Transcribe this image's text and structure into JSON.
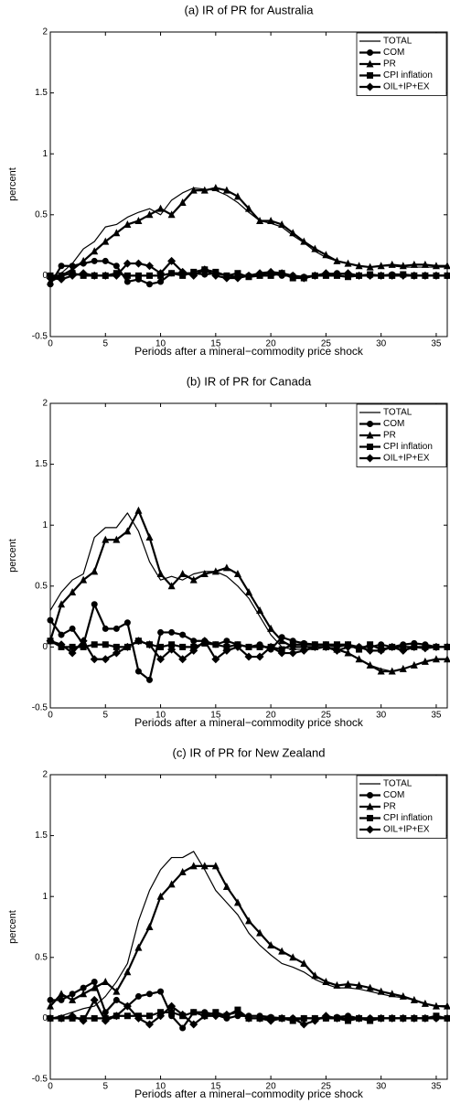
{
  "chart_data": [
    {
      "type": "line",
      "title": "(a) IR of PR for Australia",
      "x_label": "Periods after a mineral−commodity price shock",
      "y_label": "percent",
      "x": [
        0,
        1,
        2,
        3,
        4,
        5,
        6,
        7,
        8,
        9,
        10,
        11,
        12,
        13,
        14,
        15,
        16,
        17,
        18,
        19,
        20,
        21,
        22,
        23,
        24,
        25,
        26,
        27,
        28,
        29,
        30,
        31,
        32,
        33,
        34,
        35,
        36
      ],
      "xlim": [
        0,
        36
      ],
      "xticks": [
        0,
        5,
        10,
        15,
        20,
        25,
        30,
        35
      ],
      "ylim": [
        -0.5,
        2
      ],
      "yticks": [
        -0.5,
        0,
        0.5,
        1,
        1.5,
        2
      ],
      "legend": "upper right",
      "series": [
        {
          "name": "TOTAL",
          "color": "#000000",
          "marker": "none",
          "values": [
            -0.05,
            0.02,
            0.1,
            0.22,
            0.28,
            0.4,
            0.42,
            0.48,
            0.52,
            0.55,
            0.5,
            0.62,
            0.68,
            0.72,
            0.71,
            0.7,
            0.66,
            0.6,
            0.52,
            0.45,
            0.43,
            0.4,
            0.33,
            0.27,
            0.2,
            0.15,
            0.12,
            0.1,
            0.08,
            0.07,
            0.08,
            0.08,
            0.07,
            0.07,
            0.07,
            0.07,
            0.07
          ]
        },
        {
          "name": "COM",
          "color": "#000000",
          "marker": "circle",
          "values": [
            -0.07,
            0.08,
            0.08,
            0.1,
            0.12,
            0.12,
            0.08,
            -0.05,
            -0.03,
            -0.07,
            -0.05,
            0.02,
            0.02,
            0.02,
            0.01,
            0.02,
            0,
            -0.01,
            0,
            0.01,
            0.02,
            0,
            0,
            -0.01,
            0,
            0.01,
            0.02,
            0.01,
            0,
            0,
            0,
            0.01,
            0.01,
            0,
            0,
            0,
            0
          ]
        },
        {
          "name": "PR",
          "color": "#000000",
          "marker": "triangle",
          "values": [
            -0.05,
            0,
            0.05,
            0.12,
            0.2,
            0.28,
            0.35,
            0.42,
            0.45,
            0.5,
            0.55,
            0.5,
            0.6,
            0.7,
            0.7,
            0.72,
            0.7,
            0.65,
            0.55,
            0.45,
            0.45,
            0.42,
            0.35,
            0.28,
            0.22,
            0.17,
            0.12,
            0.1,
            0.08,
            0.07,
            0.08,
            0.09,
            0.08,
            0.09,
            0.09,
            0.08,
            0.08
          ]
        },
        {
          "name": "CPI inflation",
          "color": "#000000",
          "marker": "square",
          "values": [
            0,
            0,
            0.02,
            0,
            0,
            0,
            0.02,
            0,
            0,
            0,
            0,
            0.02,
            0,
            0.03,
            0.05,
            0.03,
            0,
            0.02,
            -0.01,
            0,
            0,
            0.02,
            -0.02,
            -0.02,
            0,
            0,
            0,
            -0.01,
            0,
            0.01,
            0,
            0,
            0.01,
            0,
            0,
            0,
            0
          ]
        },
        {
          "name": "OIL+IP+EX",
          "color": "#000000",
          "marker": "diamond",
          "values": [
            -0.02,
            -0.03,
            0,
            0.02,
            0,
            0,
            0,
            0.1,
            0.1,
            0.08,
            0.02,
            0.12,
            0.03,
            0,
            0.05,
            0,
            -0.02,
            -0.02,
            0,
            0.02,
            0.03,
            0.02,
            0,
            -0.02,
            0,
            0.02,
            0.01,
            0.02,
            0,
            0,
            0,
            0,
            0,
            0,
            0,
            0,
            0
          ]
        }
      ]
    },
    {
      "type": "line",
      "title": "(b) IR of PR for Canada",
      "x_label": "Periods after a mineral−commodity price shock",
      "y_label": "percent",
      "x": [
        0,
        1,
        2,
        3,
        4,
        5,
        6,
        7,
        8,
        9,
        10,
        11,
        12,
        13,
        14,
        15,
        16,
        17,
        18,
        19,
        20,
        21,
        22,
        23,
        24,
        25,
        26,
        27,
        28,
        29,
        30,
        31,
        32,
        33,
        34,
        35,
        36
      ],
      "xlim": [
        0,
        36
      ],
      "xticks": [
        0,
        5,
        10,
        15,
        20,
        25,
        30,
        35
      ],
      "ylim": [
        -0.5,
        2
      ],
      "yticks": [
        -0.5,
        0,
        0.5,
        1,
        1.5,
        2
      ],
      "legend": "upper right",
      "series": [
        {
          "name": "TOTAL",
          "color": "#000000",
          "marker": "none",
          "values": [
            0.3,
            0.45,
            0.55,
            0.6,
            0.9,
            0.98,
            0.98,
            1.1,
            0.95,
            0.7,
            0.55,
            0.58,
            0.55,
            0.6,
            0.62,
            0.62,
            0.58,
            0.5,
            0.4,
            0.25,
            0.1,
            0,
            -0.02,
            -0.02,
            -0.02,
            0,
            -0.02,
            -0.05,
            -0.1,
            -0.15,
            -0.18,
            -0.2,
            -0.18,
            -0.15,
            -0.12,
            -0.1,
            -0.1
          ]
        },
        {
          "name": "COM",
          "color": "#000000",
          "marker": "circle",
          "values": [
            0.22,
            0.1,
            0.15,
            0.02,
            0.35,
            0.15,
            0.15,
            0.2,
            -0.2,
            -0.27,
            0.12,
            0.12,
            0.1,
            0.05,
            0.05,
            0.02,
            0.05,
            0.02,
            0,
            0.02,
            -0.02,
            0.08,
            0.05,
            0.03,
            0.02,
            0.02,
            0,
            0.02,
            0,
            0,
            0.02,
            0,
            0.02,
            0.03,
            0.02,
            0,
            0
          ]
        },
        {
          "name": "PR",
          "color": "#000000",
          "marker": "triangle",
          "values": [
            0.05,
            0.35,
            0.45,
            0.55,
            0.62,
            0.88,
            0.88,
            0.95,
            1.12,
            0.9,
            0.6,
            0.5,
            0.6,
            0.55,
            0.6,
            0.62,
            0.65,
            0.6,
            0.45,
            0.3,
            0.15,
            0.05,
            0,
            0,
            0,
            0,
            -0.02,
            -0.05,
            -0.1,
            -0.15,
            -0.2,
            -0.2,
            -0.18,
            -0.15,
            -0.12,
            -0.1,
            -0.1
          ]
        },
        {
          "name": "CPI inflation",
          "color": "#000000",
          "marker": "square",
          "values": [
            0.05,
            0,
            0,
            0,
            0.02,
            0.02,
            0,
            0,
            0.05,
            0.02,
            0,
            0.02,
            0,
            0,
            0.03,
            0.02,
            0,
            0.02,
            0,
            0,
            0,
            -0.02,
            0.02,
            0.02,
            0.02,
            0.02,
            0.02,
            0.02,
            -0.02,
            0.02,
            -0.02,
            0,
            0,
            0,
            0,
            0,
            0
          ]
        },
        {
          "name": "OIL+IP+EX",
          "color": "#000000",
          "marker": "diamond",
          "values": [
            0.05,
            0.02,
            -0.05,
            0.05,
            -0.1,
            -0.1,
            -0.05,
            0,
            0.05,
            0.02,
            -0.1,
            -0.02,
            -0.1,
            -0.03,
            0.05,
            -0.1,
            -0.03,
            0,
            -0.08,
            -0.08,
            0,
            -0.05,
            -0.05,
            -0.03,
            0,
            0,
            -0.03,
            0,
            0,
            -0.03,
            -0.03,
            0,
            -0.03,
            0,
            -0.01,
            0,
            0
          ]
        }
      ]
    },
    {
      "type": "line",
      "title": "(c) IR of PR for New Zealand",
      "x_label": "Periods after a mineral−commodity price shock",
      "y_label": "percent",
      "x": [
        0,
        1,
        2,
        3,
        4,
        5,
        6,
        7,
        8,
        9,
        10,
        11,
        12,
        13,
        14,
        15,
        16,
        17,
        18,
        19,
        20,
        21,
        22,
        23,
        24,
        25,
        26,
        27,
        28,
        29,
        30,
        31,
        32,
        33,
        34,
        35,
        36
      ],
      "xlim": [
        0,
        36
      ],
      "xticks": [
        0,
        5,
        10,
        15,
        20,
        25,
        30,
        35
      ],
      "ylim": [
        -0.5,
        2
      ],
      "yticks": [
        -0.5,
        0,
        0.5,
        1,
        1.5,
        2
      ],
      "legend": "upper right",
      "series": [
        {
          "name": "TOTAL",
          "color": "#000000",
          "marker": "none",
          "values": [
            0,
            0.02,
            0.05,
            0.08,
            0.1,
            0.18,
            0.3,
            0.45,
            0.8,
            1.05,
            1.22,
            1.32,
            1.32,
            1.37,
            1.22,
            1.05,
            0.95,
            0.85,
            0.7,
            0.6,
            0.52,
            0.45,
            0.42,
            0.38,
            0.32,
            0.28,
            0.25,
            0.25,
            0.24,
            0.22,
            0.2,
            0.18,
            0.17,
            0.15,
            0.12,
            0.1,
            0.09
          ]
        },
        {
          "name": "COM",
          "color": "#000000",
          "marker": "circle",
          "values": [
            0.15,
            0.15,
            0.2,
            0.25,
            0.3,
            0.05,
            0.15,
            0.1,
            0.18,
            0.2,
            0.22,
            0.02,
            -0.08,
            0.05,
            0.05,
            0.03,
            0,
            0.02,
            0.02,
            0.02,
            0.01,
            0,
            0,
            0,
            0,
            0,
            0.01,
            0.02,
            0,
            0,
            0,
            0,
            0,
            0,
            0,
            0,
            0
          ]
        },
        {
          "name": "PR",
          "color": "#000000",
          "marker": "triangle",
          "values": [
            0.1,
            0.2,
            0.15,
            0.2,
            0.25,
            0.3,
            0.22,
            0.38,
            0.58,
            0.75,
            1.0,
            1.1,
            1.2,
            1.25,
            1.25,
            1.25,
            1.08,
            0.95,
            0.8,
            0.7,
            0.6,
            0.55,
            0.5,
            0.45,
            0.35,
            0.3,
            0.27,
            0.28,
            0.27,
            0.25,
            0.22,
            0.2,
            0.18,
            0.15,
            0.12,
            0.1,
            0.1
          ]
        },
        {
          "name": "CPI inflation",
          "color": "#000000",
          "marker": "square",
          "values": [
            0,
            0,
            0,
            0,
            0,
            0,
            0.02,
            0.02,
            0.02,
            0.02,
            0.05,
            0.05,
            0.02,
            0.05,
            0.02,
            0.05,
            0.02,
            0.07,
            0,
            0,
            0,
            0,
            -0.02,
            0,
            0,
            0,
            0,
            -0.02,
            0,
            -0.02,
            0,
            0,
            0,
            0,
            0,
            0.02,
            0
          ]
        },
        {
          "name": "OIL+IP+EX",
          "color": "#000000",
          "marker": "diamond",
          "values": [
            0,
            0,
            0.02,
            -0.02,
            0.15,
            -0.02,
            0.02,
            0.1,
            0,
            -0.05,
            0.02,
            0.1,
            0.03,
            -0.05,
            0.02,
            0.02,
            0.03,
            0.05,
            0,
            0,
            -0.02,
            0,
            0,
            -0.05,
            -0.02,
            0.02,
            0,
            0,
            0,
            0,
            0,
            0,
            0,
            0,
            0,
            0,
            0
          ]
        }
      ]
    }
  ]
}
